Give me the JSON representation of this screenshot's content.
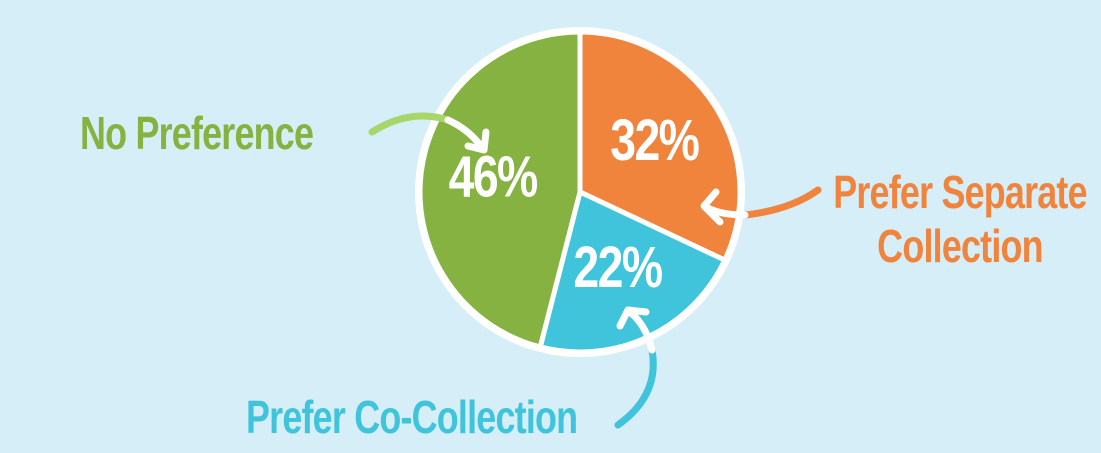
{
  "chart_data": {
    "type": "pie",
    "categories": [
      "Prefer Separate Collection",
      "Prefer Co-Collection",
      "No Preference"
    ],
    "values": [
      32,
      22,
      46
    ],
    "value_labels": [
      "32%",
      "22%",
      "46%"
    ],
    "colors": [
      "#f0843c",
      "#3fc4dc",
      "#85b240"
    ]
  }
}
